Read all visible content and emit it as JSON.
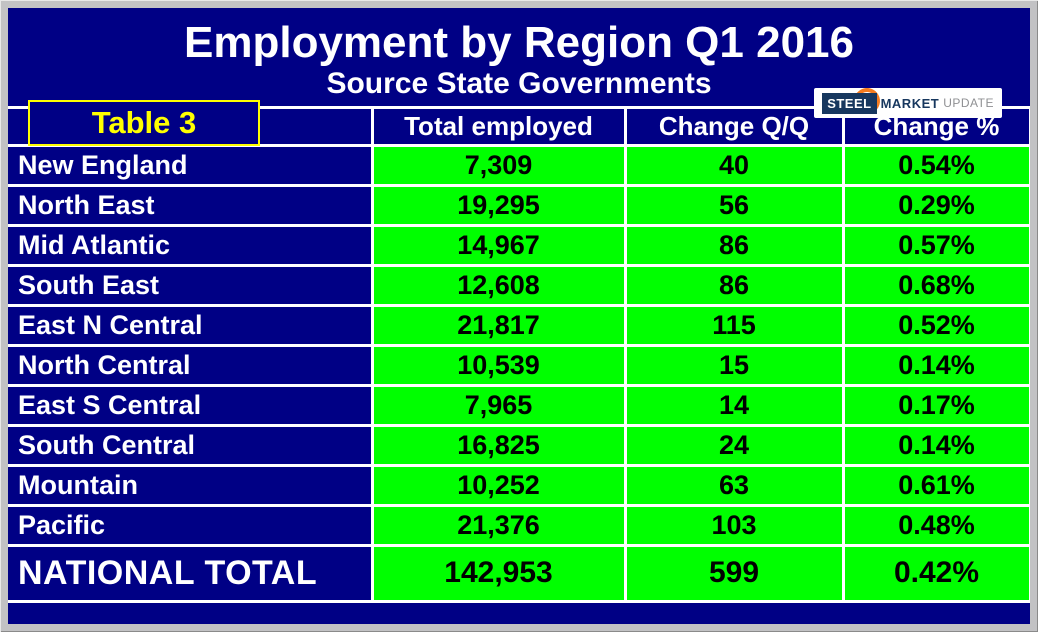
{
  "header": {
    "title": "Employment by Region Q1 2016",
    "subtitle": "Source State Governments",
    "table_label": "Table 3",
    "logo": {
      "steel": "STEEL",
      "market": "MARKET",
      "update": "UPDATE"
    }
  },
  "chart_data": {
    "type": "table",
    "title": "Employment by Region Q1 2016",
    "subtitle": "Source State Governments",
    "columns": [
      "Total employed",
      "Change Q/Q",
      "Change %"
    ],
    "rows": [
      {
        "region": "New England",
        "total": "7,309",
        "change": "40",
        "pct": "0.54%"
      },
      {
        "region": "North East",
        "total": "19,295",
        "change": "56",
        "pct": "0.29%"
      },
      {
        "region": "Mid Atlantic",
        "total": "14,967",
        "change": "86",
        "pct": "0.57%"
      },
      {
        "region": "South East",
        "total": "12,608",
        "change": "86",
        "pct": "0.68%"
      },
      {
        "region": "East N Central",
        "total": "21,817",
        "change": "115",
        "pct": "0.52%"
      },
      {
        "region": "North Central",
        "total": "10,539",
        "change": "15",
        "pct": "0.14%"
      },
      {
        "region": "East S Central",
        "total": "7,965",
        "change": "14",
        "pct": "0.17%"
      },
      {
        "region": "South Central",
        "total": "16,825",
        "change": "24",
        "pct": "0.14%"
      },
      {
        "region": "Mountain",
        "total": "10,252",
        "change": "63",
        "pct": "0.61%"
      },
      {
        "region": "Pacific",
        "total": "21,376",
        "change": "103",
        "pct": "0.48%"
      }
    ],
    "total_row": {
      "region": "NATIONAL TOTAL",
      "total": "142,953",
      "change": "599",
      "pct": "0.42%"
    }
  },
  "colors": {
    "background_navy": "#000085",
    "cell_green": "#00FF00",
    "label_yellow": "#FFFF00",
    "frame_gray": "#C2C2C4",
    "grid_white": "#FFFFFF",
    "logo_orange": "#F47B20",
    "logo_navy": "#17375E"
  }
}
